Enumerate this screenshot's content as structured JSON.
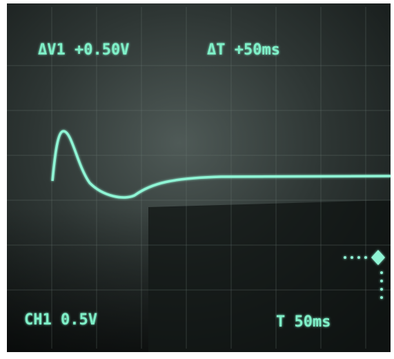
{
  "screen": {
    "readouts": {
      "delta_v": "ΔV1 +0.50V",
      "delta_t": "ΔT +50ms",
      "channel": "CH1 0.5V",
      "timebase": "T 50ms"
    }
  }
}
